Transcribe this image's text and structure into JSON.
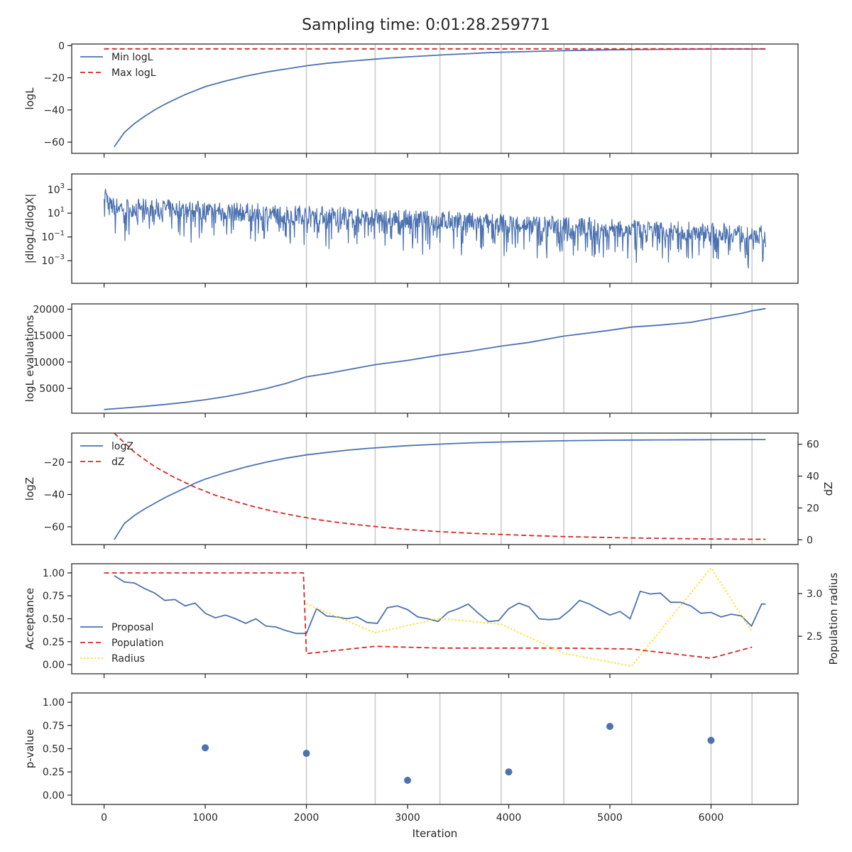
{
  "figure": {
    "title": "Sampling time: 0:01:28.259771",
    "colors": {
      "blue": "#4c72b0",
      "red": "#d62728",
      "yellow": "#ffd700",
      "grid": "#c8c8c8",
      "text": "#262626"
    }
  },
  "chart_data": [
    {
      "type": "line",
      "panel": "logL",
      "ylabel": "logL",
      "xlim": [
        -320,
        6860
      ],
      "ylim": [
        -67,
        1
      ],
      "yticks": [
        0,
        -20,
        -40,
        -60
      ],
      "vlines": [
        2000,
        2680,
        3320,
        3925,
        4545,
        5215,
        6000,
        6405
      ],
      "legend": "upper-left",
      "series": [
        {
          "name": "Min logL",
          "color": "#4c72b0",
          "style": "solid",
          "x": [
            100,
            200,
            300,
            400,
            500,
            600,
            700,
            800,
            900,
            1000,
            1200,
            1400,
            1600,
            1800,
            2000,
            2200,
            2400,
            2600,
            2800,
            3000,
            3200,
            3400,
            3600,
            3800,
            4000,
            4500,
            5000,
            5500,
            6000,
            6540
          ],
          "y": [
            -63,
            -54,
            -48.5,
            -44,
            -40,
            -36.5,
            -33.5,
            -30.5,
            -28,
            -25.5,
            -22,
            -19,
            -16.5,
            -14.5,
            -12.5,
            -11,
            -9.8,
            -8.8,
            -7.8,
            -7,
            -6.3,
            -5.6,
            -5,
            -4.4,
            -4,
            -3.2,
            -2.6,
            -2.3,
            -2.15,
            -2.1
          ]
        },
        {
          "name": "Max logL",
          "color": "#d62728",
          "style": "dashed",
          "x": [
            0,
            6540
          ],
          "y": [
            -2,
            -2
          ]
        }
      ]
    },
    {
      "type": "line",
      "panel": "dlogL",
      "ylabel": "|dlogL/dlogX|",
      "yscale": "log",
      "xlim": [
        -320,
        6860
      ],
      "ylim": [
        -4.9,
        4.3
      ],
      "yticks": [
        3,
        1,
        -1,
        -3
      ],
      "ytick_labels": [
        "10",
        "10",
        "10",
        "10"
      ],
      "ytick_exponents": [
        "3",
        "1",
        "−1",
        "−3"
      ],
      "vlines": [
        2000,
        2680,
        3320,
        3925,
        4545,
        5215,
        6000,
        6405
      ],
      "series": [
        {
          "name": "",
          "color": "#4c72b0",
          "style": "noisy",
          "x_start": 0,
          "x_end": 6540,
          "trend_log10_start": 1.6,
          "trend_log10_end": -0.8
        }
      ]
    },
    {
      "type": "line",
      "panel": "evaluations",
      "ylabel": "logL evaluations",
      "xlim": [
        -320,
        6860
      ],
      "ylim": [
        300,
        21000
      ],
      "yticks": [
        5000,
        10000,
        15000,
        20000
      ],
      "vlines": [
        2000,
        2680,
        3320,
        3925,
        4545,
        5215,
        6000,
        6405
      ],
      "series": [
        {
          "name": "",
          "color": "#4c72b0",
          "style": "solid",
          "x": [
            0,
            200,
            400,
            600,
            800,
            1000,
            1200,
            1400,
            1600,
            1800,
            2000,
            2200,
            2400,
            2680,
            3000,
            3320,
            3600,
            3925,
            4200,
            4545,
            4800,
            5000,
            5215,
            5500,
            5800,
            6000,
            6300,
            6405,
            6540
          ],
          "y": [
            1000,
            1300,
            1600,
            1950,
            2350,
            2850,
            3450,
            4150,
            4950,
            5950,
            7200,
            7800,
            8500,
            9500,
            10300,
            11300,
            12000,
            13000,
            13700,
            14900,
            15500,
            16000,
            16600,
            17000,
            17500,
            18200,
            19200,
            19700,
            20100
          ]
        }
      ]
    },
    {
      "type": "line",
      "panel": "evidence",
      "ylabel": "logZ",
      "y2label": "dZ",
      "xlim": [
        -320,
        6860
      ],
      "ylim": [
        -71,
        -2
      ],
      "yticks": [
        -20,
        -40,
        -60
      ],
      "y2lim": [
        -3,
        67
      ],
      "y2ticks": [
        0,
        20,
        40,
        60
      ],
      "vlines": [
        2000,
        2680,
        3320,
        3925,
        4545,
        5215,
        6000,
        6405
      ],
      "legend": "upper-left",
      "series": [
        {
          "name": "logZ",
          "color": "#4c72b0",
          "style": "solid",
          "axis": "left",
          "x": [
            100,
            200,
            300,
            400,
            500,
            600,
            700,
            800,
            900,
            1000,
            1200,
            1400,
            1600,
            1800,
            2000,
            2200,
            2400,
            2600,
            2800,
            3000,
            3200,
            3400,
            3600,
            3800,
            4000,
            4500,
            5000,
            5500,
            6000,
            6540
          ],
          "y": [
            -68,
            -58,
            -53,
            -49,
            -45.5,
            -42,
            -39,
            -36,
            -33,
            -30.5,
            -26.5,
            -23,
            -20,
            -17.5,
            -15.5,
            -14,
            -12.6,
            -11.5,
            -10.6,
            -9.8,
            -9.2,
            -8.6,
            -8.1,
            -7.7,
            -7.4,
            -6.8,
            -6.4,
            -6.2,
            -6.1,
            -6.0
          ]
        },
        {
          "name": "dZ",
          "color": "#d62728",
          "style": "dashed",
          "axis": "right",
          "x": [
            100,
            300,
            500,
            700,
            900,
            1100,
            1300,
            1500,
            1700,
            1900,
            2100,
            2300,
            2500,
            2700,
            2900,
            3100,
            3300,
            3500,
            3700,
            3900,
            4200,
            4500,
            5000,
            5500,
            6000,
            6540
          ],
          "y": [
            67,
            55,
            46,
            39,
            33,
            28,
            24,
            20.5,
            17.5,
            15,
            12.8,
            11,
            9.5,
            8.2,
            7,
            6,
            5.2,
            4.5,
            3.9,
            3.4,
            2.7,
            2.1,
            1.4,
            0.9,
            0.5,
            0.3
          ]
        }
      ]
    },
    {
      "type": "line",
      "panel": "acceptance",
      "ylabel": "Acceptance",
      "y2label": "Population radius",
      "xlim": [
        -320,
        6860
      ],
      "ylim": [
        -0.1,
        1.1
      ],
      "yticks": [
        0.0,
        0.25,
        0.5,
        0.75,
        1.0
      ],
      "ytick_labels": [
        "0.00",
        "0.25",
        "0.50",
        "0.75",
        "1.00"
      ],
      "y2lim": [
        2.06,
        3.35
      ],
      "y2ticks": [
        2.5,
        3.0
      ],
      "y2tick_labels": [
        "2.5",
        "3.0"
      ],
      "legend": "center-left",
      "series": [
        {
          "name": "Proposal",
          "color": "#4c72b0",
          "style": "solid",
          "axis": "left",
          "x": [
            100,
            200,
            300,
            400,
            500,
            600,
            700,
            800,
            900,
            1000,
            1100,
            1200,
            1300,
            1400,
            1500,
            1600,
            1700,
            1800,
            1900,
            2000,
            2100,
            2200,
            2300,
            2400,
            2500,
            2600,
            2700,
            2800,
            2900,
            3000,
            3100,
            3200,
            3300,
            3400,
            3500,
            3600,
            3700,
            3800,
            3900,
            4000,
            4100,
            4200,
            4300,
            4400,
            4500,
            4600,
            4700,
            4800,
            4900,
            5000,
            5100,
            5200,
            5300,
            5400,
            5500,
            5600,
            5700,
            5800,
            5900,
            6000,
            6100,
            6200,
            6300,
            6400,
            6500,
            6540
          ],
          "y": [
            0.97,
            0.9,
            0.89,
            0.83,
            0.78,
            0.7,
            0.71,
            0.64,
            0.67,
            0.56,
            0.51,
            0.54,
            0.5,
            0.45,
            0.5,
            0.42,
            0.41,
            0.37,
            0.34,
            0.34,
            0.61,
            0.53,
            0.52,
            0.5,
            0.52,
            0.46,
            0.45,
            0.62,
            0.64,
            0.6,
            0.52,
            0.5,
            0.47,
            0.57,
            0.61,
            0.66,
            0.56,
            0.47,
            0.48,
            0.61,
            0.67,
            0.63,
            0.5,
            0.49,
            0.5,
            0.59,
            0.7,
            0.66,
            0.6,
            0.54,
            0.58,
            0.5,
            0.8,
            0.77,
            0.78,
            0.68,
            0.68,
            0.64,
            0.56,
            0.57,
            0.52,
            0.55,
            0.53,
            0.42,
            0.66,
            0.66
          ]
        },
        {
          "name": "Population",
          "color": "#d62728",
          "style": "dashed",
          "axis": "left",
          "x": [
            0,
            1970,
            2000,
            2680,
            3320,
            3925,
            4545,
            5215,
            6000,
            6405
          ],
          "y": [
            1.0,
            1.0,
            0.12,
            0.2,
            0.18,
            0.18,
            0.18,
            0.17,
            0.07,
            0.19
          ]
        },
        {
          "name": "Radius",
          "color": "#ffd700",
          "style": "dotted",
          "axis": "right",
          "x": [
            2000,
            2680,
            3320,
            3925,
            4545,
            5215,
            6000,
            6405
          ],
          "y": [
            2.88,
            2.54,
            2.71,
            2.64,
            2.3,
            2.15,
            3.3,
            2.55
          ]
        }
      ]
    },
    {
      "type": "scatter",
      "panel": "pvalue",
      "ylabel": "p-value",
      "xlabel": "Iteration",
      "xlim": [
        -320,
        6860
      ],
      "ylim": [
        -0.1,
        1.1
      ],
      "yticks": [
        0.0,
        0.25,
        0.5,
        0.75,
        1.0
      ],
      "ytick_labels": [
        "0.00",
        "0.25",
        "0.50",
        "0.75",
        "1.00"
      ],
      "xticks": [
        0,
        1000,
        2000,
        3000,
        4000,
        5000,
        6000
      ],
      "vlines": [
        2000,
        2680,
        3320,
        3925,
        4545,
        5215,
        6000,
        6405
      ],
      "series": [
        {
          "name": "",
          "color": "#4c72b0",
          "x": [
            1000,
            2000,
            3000,
            4000,
            5000,
            6000
          ],
          "y": [
            0.51,
            0.45,
            0.16,
            0.25,
            0.74,
            0.59
          ]
        }
      ]
    }
  ]
}
